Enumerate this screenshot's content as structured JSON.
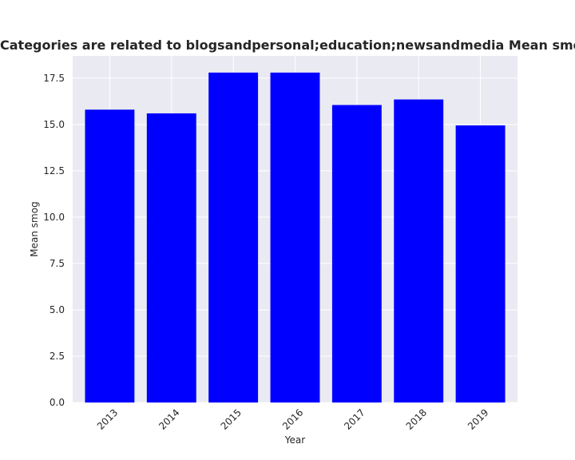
{
  "chart_data": {
    "type": "bar",
    "title": "Categories are related to blogsandpersonal;education;newsandmedia Mean smog in privacy policies",
    "xlabel": "Year",
    "ylabel": "Mean smog",
    "categories": [
      "2013",
      "2014",
      "2015",
      "2016",
      "2017",
      "2018",
      "2019"
    ],
    "values": [
      15.8,
      15.6,
      17.8,
      17.8,
      16.05,
      16.35,
      14.95
    ],
    "ylim": [
      0,
      18.7
    ],
    "yticks": [
      "0.0",
      "2.5",
      "5.0",
      "7.5",
      "10.0",
      "12.5",
      "15.0",
      "17.5"
    ],
    "grid": true,
    "colors": {
      "bar": "#0000ff",
      "plot_bg": "#eaeaf2",
      "grid": "#ffffff",
      "text": "#262626"
    }
  }
}
